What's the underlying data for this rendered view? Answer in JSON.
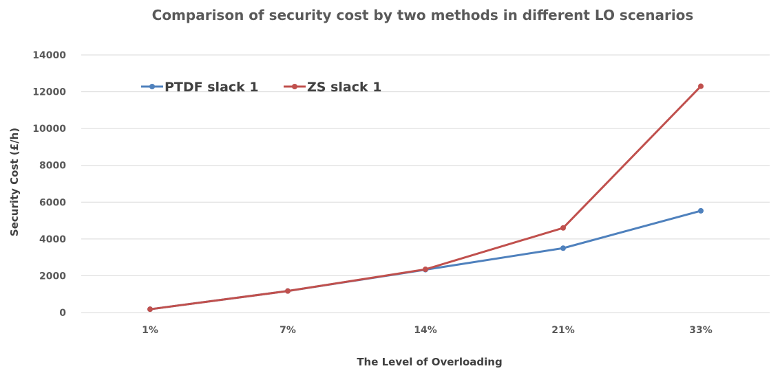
{
  "chart_data": {
    "type": "line",
    "title": "Comparison of security cost by two methods in different LO scenarios",
    "xlabel": "The Level of Overloading",
    "ylabel": "Security Cost (£/h)",
    "categories": [
      "1%",
      "7%",
      "14%",
      "21%",
      "33%"
    ],
    "ylim": [
      0,
      14000
    ],
    "yticks": [
      "0",
      "2000",
      "4000",
      "6000",
      "8000",
      "10000",
      "12000",
      "14000"
    ],
    "grid": true,
    "legend": "top-left",
    "series": [
      {
        "name": "PTDF slack 1",
        "color": "#4f81bd",
        "values": [
          180,
          1170,
          2330,
          3500,
          5530
        ]
      },
      {
        "name": "ZS slack 1",
        "color": "#c0504d",
        "values": [
          180,
          1170,
          2350,
          4600,
          12300
        ]
      }
    ]
  }
}
